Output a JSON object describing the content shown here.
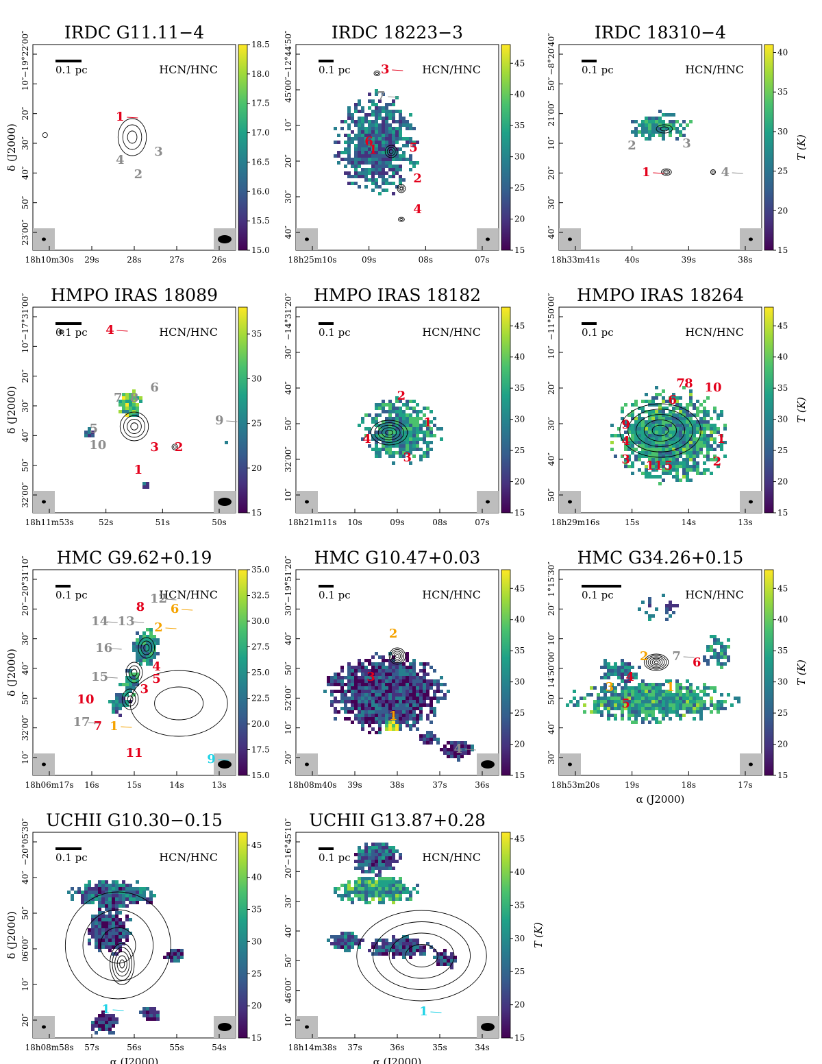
{
  "figure": {
    "quantity_label": "T (K)",
    "ra_axis_label": "α (J2000)",
    "dec_axis_label": "δ (J2000)",
    "colormap": [
      "#440154",
      "#46327e",
      "#365c8d",
      "#277f8e",
      "#1fa187",
      "#4ac16d",
      "#a0da39",
      "#fde725"
    ],
    "label_colors": {
      "red": "#e3001b",
      "gray": "#8c8c8c",
      "orange": "#f5a300",
      "cyan": "#1fd3e6"
    }
  },
  "chart_data": [
    {
      "id": "irdc-g11",
      "type": "heatmap",
      "title": "IRDC G11.11−4",
      "tag": "HCN/HNC",
      "scalebar": "0.1 pc",
      "colorbar": {
        "range": [
          15.0,
          18.5
        ],
        "ticks": [
          "15.0",
          "15.5",
          "16.0",
          "16.5",
          "17.0",
          "17.5",
          "18.0",
          "18.5"
        ]
      },
      "ra_ticks": [
        "18h10m30s",
        "29s",
        "28s",
        "27s",
        "26s"
      ],
      "dec_ticks": [
        "−19°22′00″",
        "10″",
        "20″",
        "30″",
        "40″",
        "50″",
        "23′00″"
      ],
      "cores": [
        {
          "id": "1",
          "color": "red"
        },
        {
          "id": "2",
          "color": "gray"
        },
        {
          "id": "3",
          "color": "gray"
        },
        {
          "id": "4",
          "color": "gray"
        }
      ]
    },
    {
      "id": "irdc-18223",
      "type": "heatmap",
      "title": "IRDC 18223−3",
      "tag": "HCN/HNC",
      "scalebar": "0.1 pc",
      "colorbar": {
        "range": [
          15,
          48
        ],
        "ticks": [
          "15",
          "20",
          "25",
          "30",
          "35",
          "40",
          "45"
        ]
      },
      "ra_ticks": [
        "18h25m10s",
        "09s",
        "08s",
        "07s"
      ],
      "dec_ticks": [
        "−12°44′50″",
        "45′00″",
        "10″",
        "20″",
        "30″",
        "40″"
      ],
      "cores": [
        {
          "id": "1",
          "color": "red"
        },
        {
          "id": "2",
          "color": "red"
        },
        {
          "id": "3",
          "color": "red"
        },
        {
          "id": "4",
          "color": "red"
        },
        {
          "id": "5",
          "color": "red"
        },
        {
          "id": "6",
          "color": "red"
        },
        {
          "id": "7",
          "color": "gray"
        }
      ]
    },
    {
      "id": "irdc-18310",
      "type": "heatmap",
      "title": "IRDC 18310−4",
      "tag": "HCN/HNC",
      "scalebar": "0.1 pc",
      "colorbar": {
        "label": "T (K)",
        "range": [
          15,
          41
        ],
        "ticks": [
          "15",
          "20",
          "25",
          "30",
          "35",
          "40"
        ]
      },
      "ra_ticks": [
        "18h33m41s",
        "40s",
        "39s",
        "38s"
      ],
      "dec_ticks": [
        "−8°20′40″",
        "50″",
        "21′00″",
        "10″",
        "20″",
        "30″",
        "40″"
      ],
      "cores": [
        {
          "id": "1",
          "color": "red"
        },
        {
          "id": "2",
          "color": "gray"
        },
        {
          "id": "3",
          "color": "gray"
        },
        {
          "id": "4",
          "color": "gray"
        }
      ]
    },
    {
      "id": "hmpo-18089",
      "type": "heatmap",
      "title": "HMPO IRAS 18089",
      "tag": "HCN/HNC",
      "scalebar": "0.1 pc",
      "colorbar": {
        "range": [
          15,
          38
        ],
        "ticks": [
          "15",
          "20",
          "25",
          "30",
          "35"
        ]
      },
      "ra_ticks": [
        "18h11m53s",
        "52s",
        "51s",
        "50s"
      ],
      "dec_ticks": [
        "−17°31′00″",
        "10″",
        "20″",
        "30″",
        "40″",
        "50″",
        "32′00″"
      ],
      "cores": [
        {
          "id": "1",
          "color": "red"
        },
        {
          "id": "2",
          "color": "red"
        },
        {
          "id": "3",
          "color": "red"
        },
        {
          "id": "4",
          "color": "red"
        },
        {
          "id": "5",
          "color": "gray"
        },
        {
          "id": "6",
          "color": "gray"
        },
        {
          "id": "7",
          "color": "gray"
        },
        {
          "id": "8",
          "color": "gray"
        },
        {
          "id": "9",
          "color": "gray"
        },
        {
          "id": "10",
          "color": "gray"
        }
      ]
    },
    {
      "id": "hmpo-18182",
      "type": "heatmap",
      "title": "HMPO IRAS 18182",
      "tag": "HCN/HNC",
      "scalebar": "0.1 pc",
      "colorbar": {
        "range": [
          15,
          48
        ],
        "ticks": [
          "15",
          "20",
          "25",
          "30",
          "35",
          "40",
          "45"
        ]
      },
      "ra_ticks": [
        "18h21m11s",
        "10s",
        "09s",
        "08s",
        "07s"
      ],
      "dec_ticks": [
        "−14°31′20″",
        "30″",
        "40″",
        "50″",
        "32′00″",
        "10″"
      ],
      "cores": [
        {
          "id": "1",
          "color": "red"
        },
        {
          "id": "2",
          "color": "red"
        },
        {
          "id": "3",
          "color": "red"
        },
        {
          "id": "4",
          "color": "red"
        }
      ]
    },
    {
      "id": "hmpo-18264",
      "type": "heatmap",
      "title": "HMPO IRAS 18264",
      "tag": "HCN/HNC",
      "scalebar": "0.1 pc",
      "colorbar": {
        "label": "T (K)",
        "range": [
          15,
          48
        ],
        "ticks": [
          "15",
          "20",
          "25",
          "30",
          "35",
          "40",
          "45"
        ]
      },
      "ra_ticks": [
        "18h29m16s",
        "15s",
        "14s",
        "13s"
      ],
      "dec_ticks": [
        "−11°50′00″",
        "10″",
        "20″",
        "30″",
        "40″",
        "50″"
      ],
      "cores": [
        {
          "id": "1",
          "color": "red"
        },
        {
          "id": "2",
          "color": "red"
        },
        {
          "id": "3",
          "color": "red"
        },
        {
          "id": "4",
          "color": "red"
        },
        {
          "id": "5",
          "color": "red"
        },
        {
          "id": "6",
          "color": "red"
        },
        {
          "id": "7",
          "color": "red"
        },
        {
          "id": "8",
          "color": "red"
        },
        {
          "id": "9",
          "color": "red"
        },
        {
          "id": "10",
          "color": "red"
        },
        {
          "id": "11",
          "color": "red"
        }
      ]
    },
    {
      "id": "hmc-g9",
      "type": "heatmap",
      "title": "HMC G9.62+0.19",
      "tag": "HCN/HNC",
      "scalebar": "0.1 pc",
      "colorbar": {
        "range": [
          15.0,
          35.0
        ],
        "ticks": [
          "15.0",
          "17.5",
          "20.0",
          "22.5",
          "25.0",
          "27.5",
          "30.0",
          "32.5",
          "35.0"
        ]
      },
      "ra_ticks": [
        "18h06m17s",
        "16s",
        "15s",
        "14s",
        "13s"
      ],
      "dec_ticks": [
        "−20°31′10″",
        "20″",
        "30″",
        "40″",
        "50″",
        "32′00″",
        "10″"
      ],
      "cores": [
        {
          "id": "1",
          "color": "orange"
        },
        {
          "id": "2",
          "color": "orange"
        },
        {
          "id": "3",
          "color": "red"
        },
        {
          "id": "4",
          "color": "red"
        },
        {
          "id": "5",
          "color": "red"
        },
        {
          "id": "6",
          "color": "orange"
        },
        {
          "id": "7",
          "color": "red"
        },
        {
          "id": "8",
          "color": "red"
        },
        {
          "id": "9",
          "color": "cyan"
        },
        {
          "id": "10",
          "color": "red"
        },
        {
          "id": "11",
          "color": "red"
        },
        {
          "id": "12",
          "color": "gray"
        },
        {
          "id": "13",
          "color": "gray"
        },
        {
          "id": "14",
          "color": "gray"
        },
        {
          "id": "15",
          "color": "gray"
        },
        {
          "id": "16",
          "color": "gray"
        },
        {
          "id": "17",
          "color": "gray"
        }
      ]
    },
    {
      "id": "hmc-g10",
      "type": "heatmap",
      "title": "HMC G10.47+0.03",
      "tag": "HCN/HNC",
      "scalebar": "0.1 pc",
      "colorbar": {
        "range": [
          15,
          48
        ],
        "ticks": [
          "15",
          "20",
          "25",
          "30",
          "35",
          "40",
          "45"
        ]
      },
      "ra_ticks": [
        "18h08m40s",
        "39s",
        "38s",
        "37s",
        "36s"
      ],
      "dec_ticks": [
        "−19°51′20″",
        "30″",
        "40″",
        "50″",
        "52′00″",
        "10″",
        "20″"
      ],
      "cores": [
        {
          "id": "1",
          "color": "orange"
        },
        {
          "id": "2",
          "color": "orange"
        },
        {
          "id": "3",
          "color": "red"
        },
        {
          "id": "4",
          "color": "gray"
        }
      ]
    },
    {
      "id": "hmc-g34",
      "type": "heatmap",
      "title": "HMC G34.26+0.15",
      "tag": "HCN/HNC",
      "scalebar": "0.1 pc",
      "colorbar": {
        "label": "T (K)",
        "range": [
          15,
          48
        ],
        "ticks": [
          "15",
          "20",
          "25",
          "30",
          "35",
          "40",
          "45"
        ]
      },
      "ra_ticks": [
        "18h53m20s",
        "19s",
        "18s",
        "17s"
      ],
      "ra_label": "α (J2000)",
      "dec_ticks": [
        "1°15′30″",
        "20″",
        "10″",
        "14′50″00″",
        "50″",
        "40″",
        "30″"
      ],
      "cores": [
        {
          "id": "1",
          "color": "orange"
        },
        {
          "id": "2",
          "color": "orange"
        },
        {
          "id": "3",
          "color": "orange"
        },
        {
          "id": "4",
          "color": "red"
        },
        {
          "id": "5",
          "color": "red"
        },
        {
          "id": "6",
          "color": "red"
        },
        {
          "id": "7",
          "color": "gray"
        }
      ]
    },
    {
      "id": "uchii-g10",
      "type": "heatmap",
      "title": "UCHII G10.30−0.15",
      "tag": "HCN/HNC",
      "scalebar": "0.1 pc",
      "colorbar": {
        "range": [
          15,
          47
        ],
        "ticks": [
          "15",
          "20",
          "25",
          "30",
          "35",
          "40",
          "45"
        ]
      },
      "ra_ticks": [
        "18h08m58s",
        "57s",
        "56s",
        "55s",
        "54s"
      ],
      "ra_label": "α (J2000)",
      "dec_ticks": [
        "−20°05′30″",
        "40″",
        "50″",
        "06′00″",
        "10″",
        "20″"
      ],
      "cores": [
        {
          "id": "1",
          "color": "cyan"
        }
      ]
    },
    {
      "id": "uchii-g13",
      "type": "heatmap",
      "title": "UCHII G13.87+0.28",
      "tag": "HCN/HNC",
      "scalebar": "0.1 pc",
      "colorbar": {
        "label": "T (K)",
        "range": [
          15,
          46
        ],
        "ticks": [
          "15",
          "20",
          "25",
          "30",
          "35",
          "40",
          "45"
        ]
      },
      "ra_ticks": [
        "18h14m38s",
        "37s",
        "36s",
        "35s",
        "34s"
      ],
      "ra_label": "α (J2000)",
      "dec_ticks": [
        "−16°45′10″",
        "20″",
        "30″",
        "40″",
        "50″",
        "46′00″",
        "10″"
      ],
      "cores": [
        {
          "id": "1",
          "color": "cyan"
        }
      ]
    }
  ]
}
